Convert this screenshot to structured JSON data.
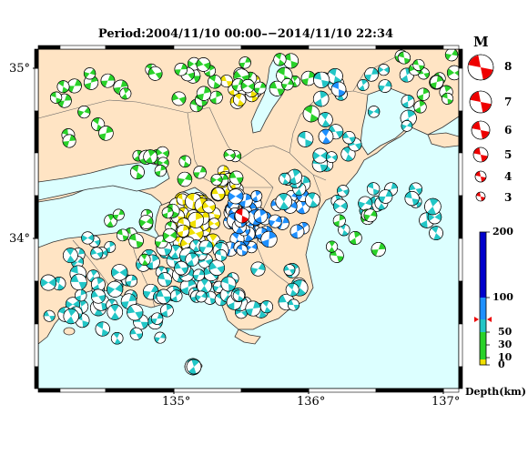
{
  "title": "Period:2004/11/10 00:00–−2014/11/10 22:34",
  "axes": {
    "lat_labels": [
      "35°",
      "34°"
    ],
    "lon_labels": [
      "135°",
      "136°",
      "137°"
    ]
  },
  "magnitude_legend": {
    "title": "M",
    "items": [
      "8",
      "7",
      "6",
      "5",
      "4",
      "3"
    ]
  },
  "depth_legend": {
    "title": "Depth(km)",
    "ticks": [
      "200",
      "100",
      "50",
      "30",
      "10",
      "0"
    ],
    "colors": {
      "shallow": "#f0e000",
      "mid": "#2ad22a",
      "deep": "#22c6c6",
      "deeper": "#1e90ff",
      "deepest": "#0000cc"
    }
  },
  "colors": {
    "sea": "#dcffff",
    "land": "#ffe4c4",
    "latest_event": "#ee0000"
  }
}
